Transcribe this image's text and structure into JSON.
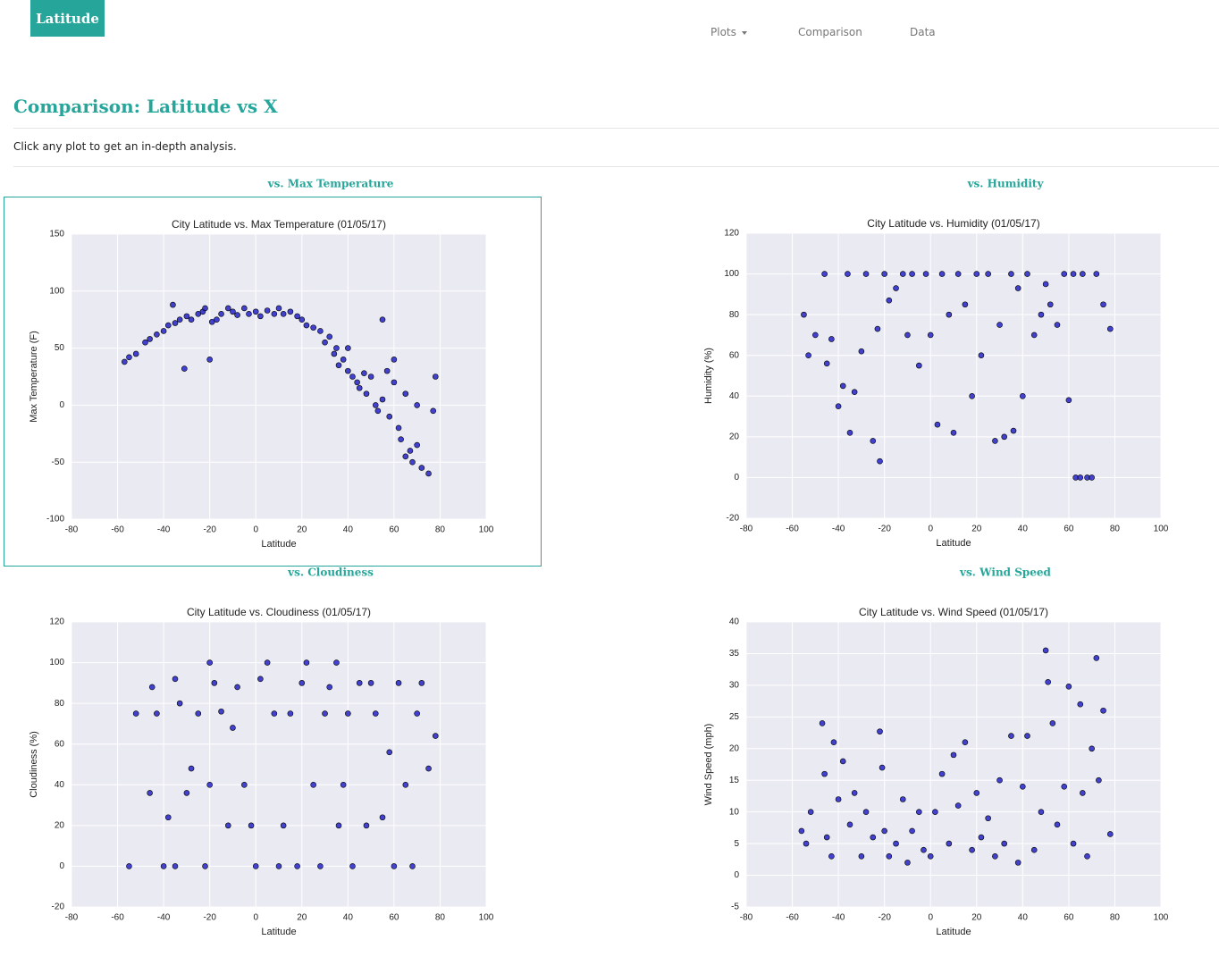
{
  "nav": {
    "brand": "Latitude",
    "links": [
      "Plots",
      "Comparison",
      "Data"
    ]
  },
  "header": {
    "title": "Comparison: Latitude vs X",
    "intro": "Click any plot to get an in-depth analysis."
  },
  "chart_data": [
    {
      "type": "scatter",
      "heading": "vs. Max Temperature",
      "title": "City Latitude vs. Max Temperature (01/05/17)",
      "xlabel": "Latitude",
      "ylabel": "Max Temperature (F)",
      "color": "#2323c8",
      "grid": true,
      "xlim": [
        -80,
        100
      ],
      "xticks": [
        -80,
        -60,
        -40,
        -20,
        0,
        20,
        40,
        60,
        80,
        100
      ],
      "ylim": [
        -100,
        150
      ],
      "yticks": [
        -100,
        -50,
        0,
        50,
        100,
        150
      ],
      "x": [
        -57,
        -55,
        -52,
        -48,
        -46,
        -43,
        -40,
        -38,
        -36,
        -35,
        -33,
        -31,
        -30,
        -28,
        -25,
        -23,
        -22,
        -20,
        -19,
        -17,
        -15,
        -12,
        -10,
        -8,
        -5,
        -3,
        0,
        2,
        5,
        8,
        10,
        12,
        15,
        18,
        20,
        22,
        25,
        28,
        30,
        32,
        34,
        35,
        36,
        38,
        40,
        40,
        42,
        44,
        45,
        47,
        48,
        50,
        52,
        53,
        55,
        55,
        57,
        58,
        60,
        60,
        62,
        63,
        65,
        65,
        67,
        68,
        70,
        70,
        72,
        75,
        77,
        78
      ],
      "values": [
        38,
        42,
        45,
        55,
        58,
        62,
        65,
        70,
        88,
        72,
        75,
        32,
        78,
        75,
        80,
        82,
        85,
        40,
        73,
        75,
        80,
        85,
        82,
        79,
        85,
        80,
        82,
        78,
        83,
        80,
        85,
        80,
        82,
        78,
        75,
        70,
        68,
        65,
        55,
        60,
        45,
        50,
        35,
        40,
        30,
        50,
        25,
        20,
        15,
        28,
        10,
        25,
        0,
        -5,
        75,
        5,
        30,
        -10,
        20,
        40,
        -20,
        -30,
        -45,
        10,
        -40,
        -50,
        0,
        -35,
        -55,
        -60,
        -5,
        25
      ]
    },
    {
      "type": "scatter",
      "heading": "vs. Humidity",
      "title": "City Latitude vs. Humidity (01/05/17)",
      "xlabel": "Latitude",
      "ylabel": "Humidity (%)",
      "color": "#2323c8",
      "grid": true,
      "xlim": [
        -80,
        100
      ],
      "xticks": [
        -80,
        -60,
        -40,
        -20,
        0,
        20,
        40,
        60,
        80,
        100
      ],
      "ylim": [
        -20,
        120
      ],
      "yticks": [
        -20,
        0,
        20,
        40,
        60,
        80,
        100,
        120
      ],
      "x": [
        -55,
        -53,
        -50,
        -46,
        -45,
        -43,
        -40,
        -38,
        -36,
        -35,
        -33,
        -30,
        -28,
        -25,
        -23,
        -22,
        -20,
        -18,
        -15,
        -12,
        -10,
        -8,
        -5,
        -2,
        0,
        3,
        5,
        8,
        10,
        12,
        15,
        18,
        20,
        22,
        25,
        28,
        30,
        32,
        35,
        36,
        38,
        40,
        42,
        45,
        48,
        50,
        52,
        55,
        58,
        60,
        62,
        63,
        65,
        66,
        68,
        70,
        72,
        75,
        78
      ],
      "values": [
        80,
        60,
        70,
        100,
        56,
        68,
        35,
        45,
        100,
        22,
        42,
        62,
        100,
        18,
        73,
        8,
        100,
        87,
        93,
        100,
        70,
        100,
        55,
        100,
        70,
        26,
        100,
        80,
        22,
        100,
        85,
        40,
        100,
        60,
        100,
        18,
        75,
        20,
        100,
        23,
        93,
        40,
        100,
        70,
        80,
        95,
        85,
        75,
        100,
        38,
        100,
        0,
        0,
        100,
        0,
        0,
        100,
        85,
        73
      ]
    },
    {
      "type": "scatter",
      "heading": "vs. Cloudiness",
      "title": "City Latitude vs. Cloudiness (01/05/17)",
      "xlabel": "Latitude",
      "ylabel": "Cloudiness (%)",
      "color": "#2323c8",
      "grid": true,
      "xlim": [
        -80,
        100
      ],
      "xticks": [
        -80,
        -60,
        -40,
        -20,
        0,
        20,
        40,
        60,
        80,
        100
      ],
      "ylim": [
        -20,
        120
      ],
      "yticks": [
        -20,
        0,
        20,
        40,
        60,
        80,
        100,
        120
      ],
      "x": [
        -55,
        -52,
        -46,
        -45,
        -43,
        -40,
        -38,
        -35,
        -35,
        -33,
        -30,
        -28,
        -25,
        -22,
        -20,
        -20,
        -18,
        -15,
        -12,
        -10,
        -8,
        -5,
        -2,
        0,
        2,
        5,
        8,
        10,
        12,
        15,
        18,
        20,
        22,
        25,
        28,
        30,
        32,
        35,
        36,
        38,
        40,
        42,
        45,
        48,
        50,
        52,
        55,
        58,
        60,
        62,
        65,
        68,
        70,
        72,
        75,
        78
      ],
      "values": [
        0,
        75,
        36,
        88,
        75,
        0,
        24,
        92,
        0,
        80,
        36,
        48,
        75,
        0,
        100,
        40,
        90,
        76,
        20,
        68,
        88,
        40,
        20,
        0,
        92,
        100,
        75,
        0,
        20,
        75,
        0,
        90,
        100,
        40,
        0,
        75,
        88,
        100,
        20,
        40,
        75,
        0,
        90,
        20,
        90,
        75,
        24,
        56,
        0,
        90,
        40,
        0,
        75,
        90,
        48,
        64
      ]
    },
    {
      "type": "scatter",
      "heading": "vs. Wind Speed",
      "title": "City Latitude vs. Wind Speed (01/05/17)",
      "xlabel": "Latitude",
      "ylabel": "Wind Speed (mph)",
      "color": "#2323c8",
      "grid": true,
      "xlim": [
        -80,
        100
      ],
      "xticks": [
        -80,
        -60,
        -40,
        -20,
        0,
        20,
        40,
        60,
        80,
        100
      ],
      "ylim": [
        -5,
        40
      ],
      "yticks": [
        -5,
        0,
        5,
        10,
        15,
        20,
        25,
        30,
        35,
        40
      ],
      "x": [
        -56,
        -54,
        -52,
        -47,
        -46,
        -45,
        -43,
        -42,
        -40,
        -38,
        -35,
        -33,
        -30,
        -28,
        -25,
        -22,
        -21,
        -20,
        -18,
        -15,
        -12,
        -10,
        -8,
        -5,
        -3,
        0,
        2,
        5,
        8,
        10,
        12,
        15,
        18,
        20,
        22,
        25,
        28,
        30,
        32,
        35,
        38,
        40,
        42,
        45,
        48,
        50,
        51,
        53,
        55,
        58,
        60,
        62,
        65,
        66,
        68,
        70,
        72,
        73,
        75,
        78
      ],
      "values": [
        7,
        5,
        10,
        24,
        16,
        6,
        3,
        21,
        12,
        18,
        8,
        13,
        3,
        10,
        6,
        22.7,
        17,
        7,
        3,
        5,
        12,
        2,
        7,
        10,
        4,
        3,
        10,
        16,
        5,
        19,
        11,
        21,
        4,
        13,
        6,
        9,
        3,
        15,
        5,
        22,
        2,
        14,
        22,
        4,
        10,
        35.5,
        30.5,
        24,
        8,
        14,
        29.8,
        5,
        27,
        13,
        3,
        20,
        34.3,
        15,
        26,
        6.5
      ]
    }
  ]
}
